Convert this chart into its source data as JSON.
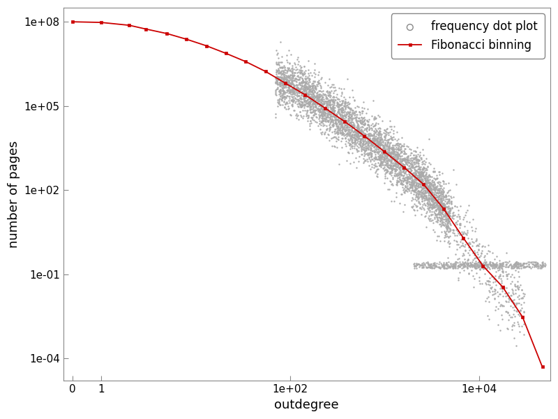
{
  "title": "",
  "xlabel": "outdegree",
  "ylabel": "number of pages",
  "background_color": "#ffffff",
  "gray_dot_color": "#aaaaaa",
  "red_line_color": "#cc0000",
  "red_marker_color": "#cc0000",
  "legend_gray_label": "frequency dot plot",
  "legend_red_label": "Fibonacci binning",
  "fib_x": [
    0.5,
    1,
    2,
    3,
    5,
    8,
    13,
    21,
    34,
    55,
    89,
    144,
    233,
    377,
    610,
    987,
    1597,
    2584,
    4181,
    6765,
    10946,
    17711,
    28657,
    46368
  ],
  "fib_y": [
    100000000.0,
    95000000.0,
    75000000.0,
    55000000.0,
    38000000.0,
    24000000.0,
    14000000.0,
    7500000.0,
    3800000.0,
    1700000.0,
    650000.0,
    250000.0,
    85000.0,
    28000.0,
    8500.0,
    2400.0,
    650.0,
    160.0,
    22.0,
    2.0,
    0.2,
    0.035,
    0.003,
    5e-05
  ]
}
